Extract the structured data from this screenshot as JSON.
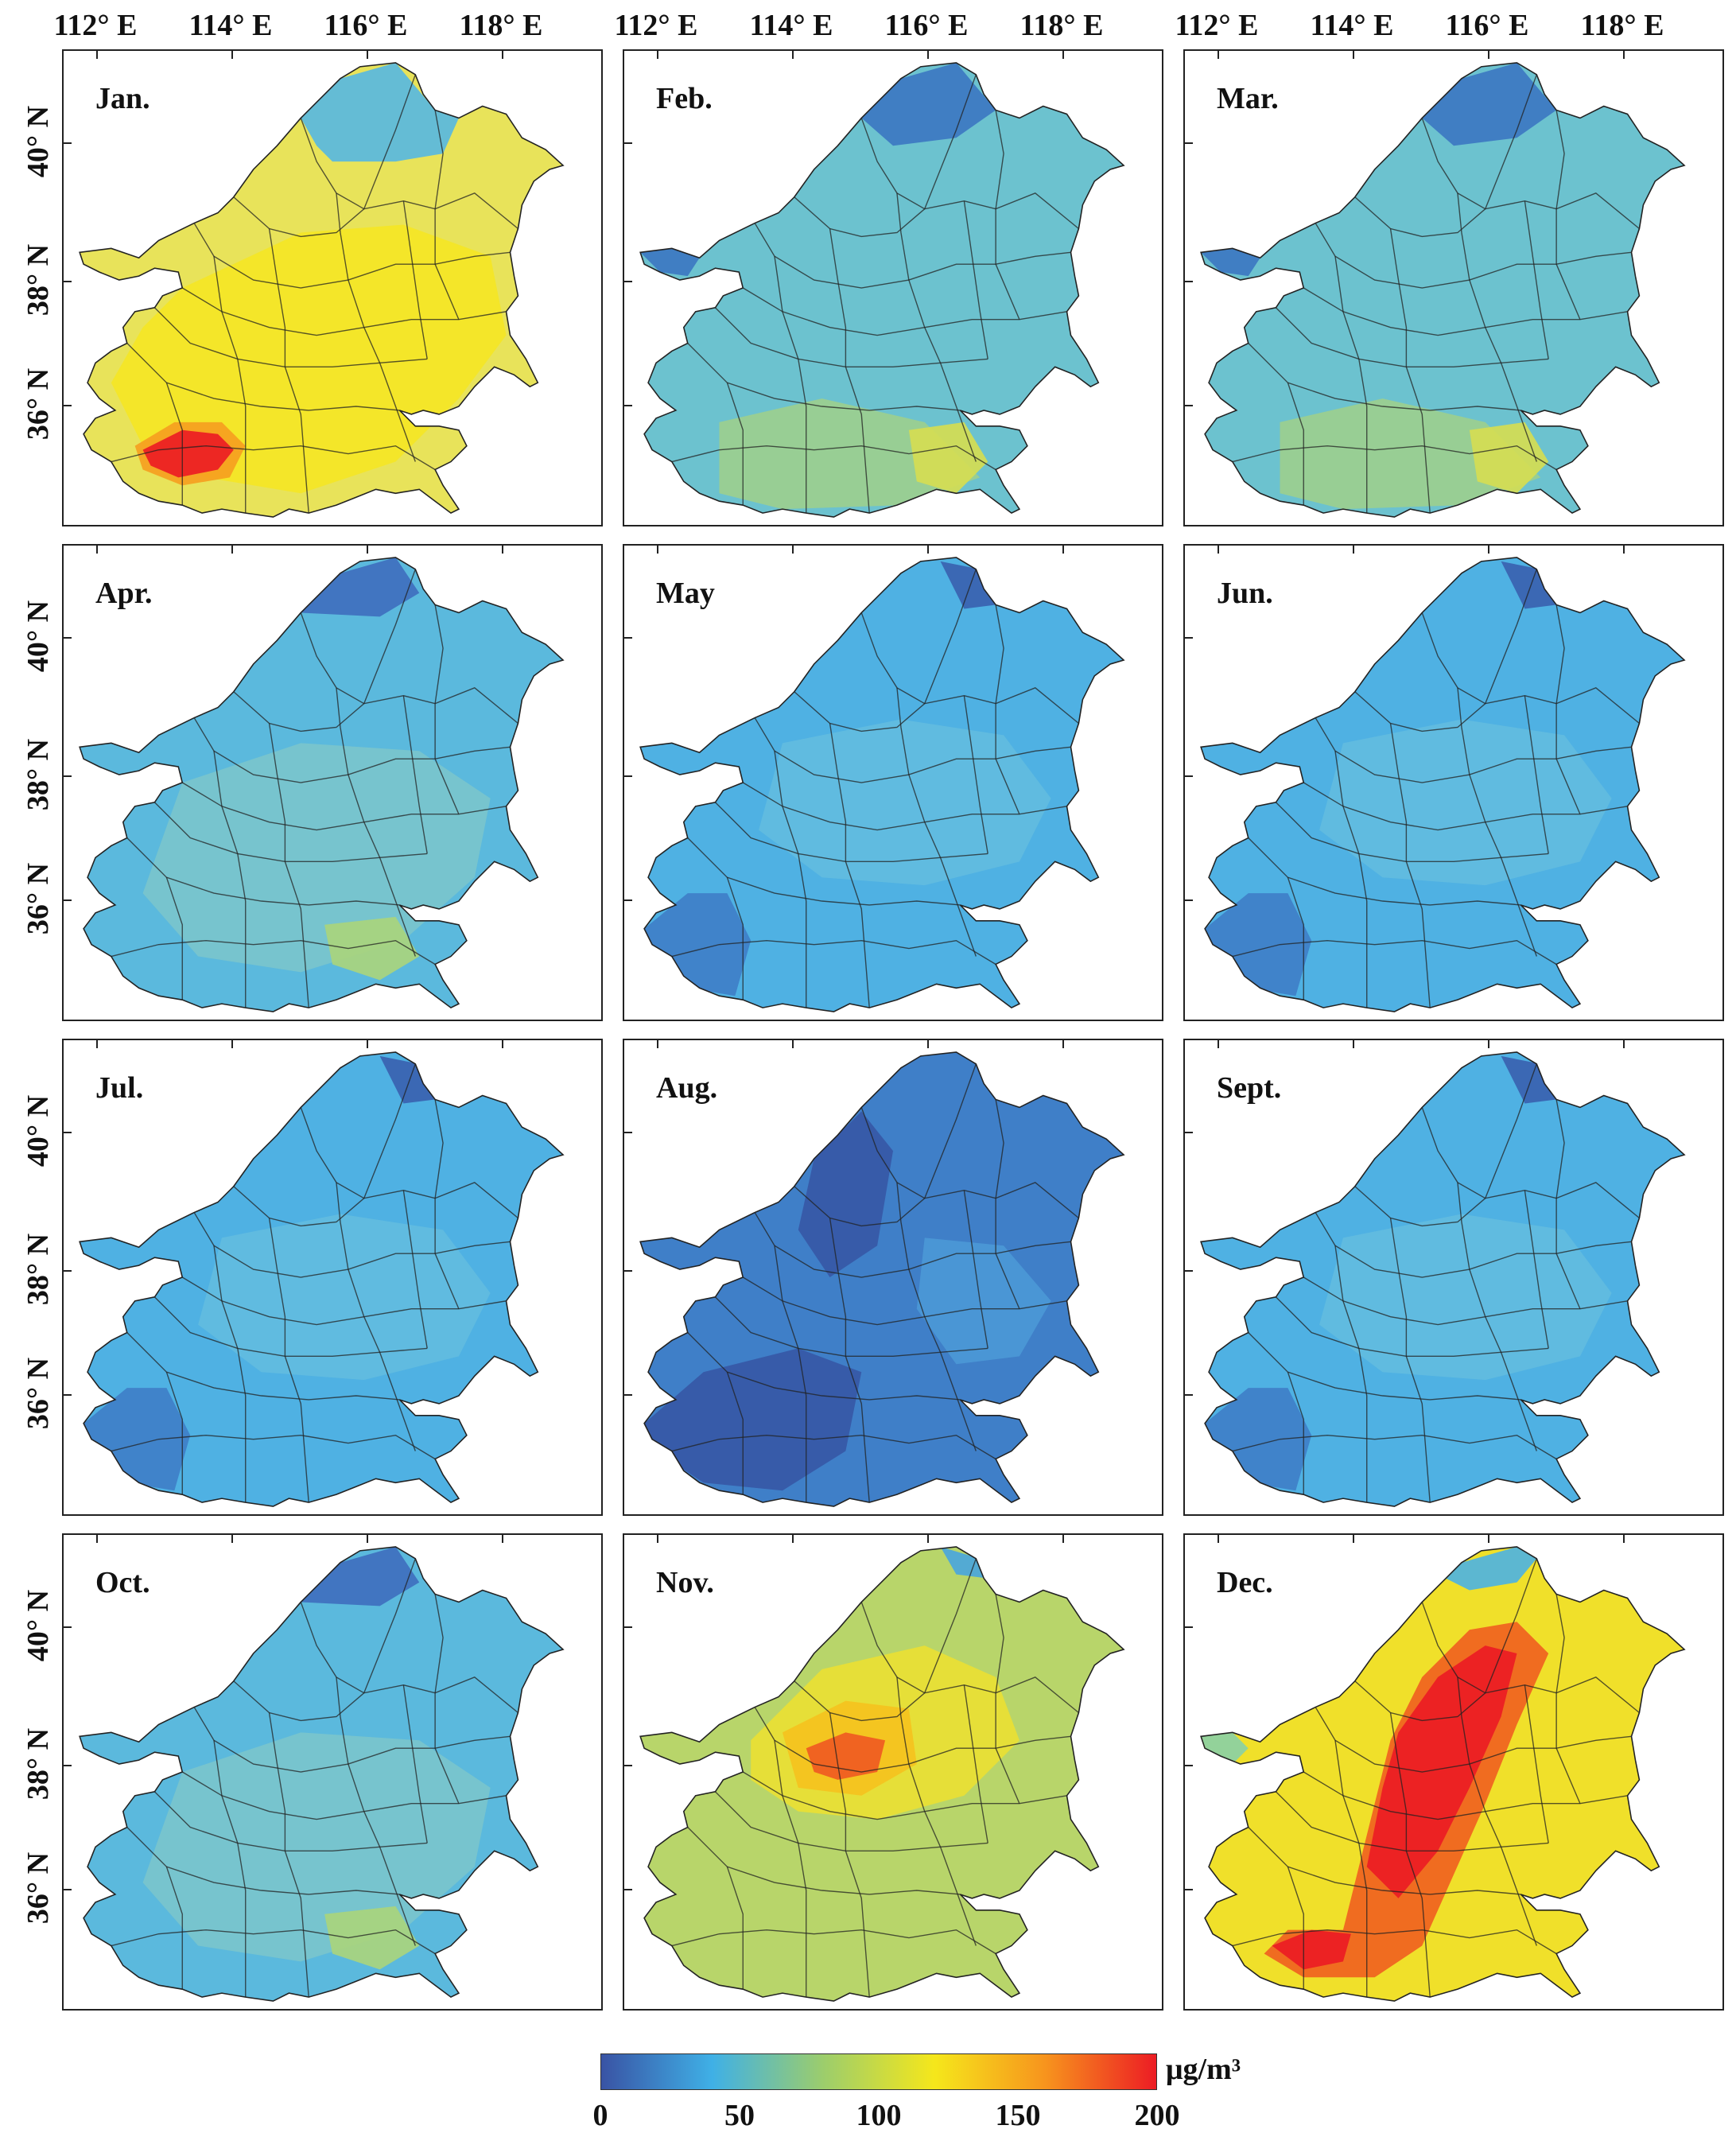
{
  "axes": {
    "longitude_labels": [
      "112° E",
      "114° E",
      "116° E",
      "118° E"
    ],
    "latitude_labels": [
      "40° N",
      "38° N",
      "36° N"
    ]
  },
  "panels": [
    {
      "month": "Jan.",
      "intensity": "high-south"
    },
    {
      "month": "Feb.",
      "intensity": "moderate"
    },
    {
      "month": "Mar.",
      "intensity": "moderate"
    },
    {
      "month": "Apr.",
      "intensity": "low-moderate"
    },
    {
      "month": "May",
      "intensity": "low"
    },
    {
      "month": "Jun.",
      "intensity": "low"
    },
    {
      "month": "Jul.",
      "intensity": "low"
    },
    {
      "month": "Aug.",
      "intensity": "lowest"
    },
    {
      "month": "Sept.",
      "intensity": "low"
    },
    {
      "month": "Oct.",
      "intensity": "low-moderate"
    },
    {
      "month": "Nov.",
      "intensity": "moderate-high"
    },
    {
      "month": "Dec.",
      "intensity": "highest"
    }
  ],
  "colorbar": {
    "labels": [
      "0",
      "50",
      "100",
      "150",
      "200"
    ],
    "min": 0,
    "max": 200,
    "unit": "μg/m³",
    "colors": [
      "#3953a4",
      "#3fb0e6",
      "#9ccd6c",
      "#f5e71b",
      "#f7941d",
      "#ec1c24"
    ]
  }
}
